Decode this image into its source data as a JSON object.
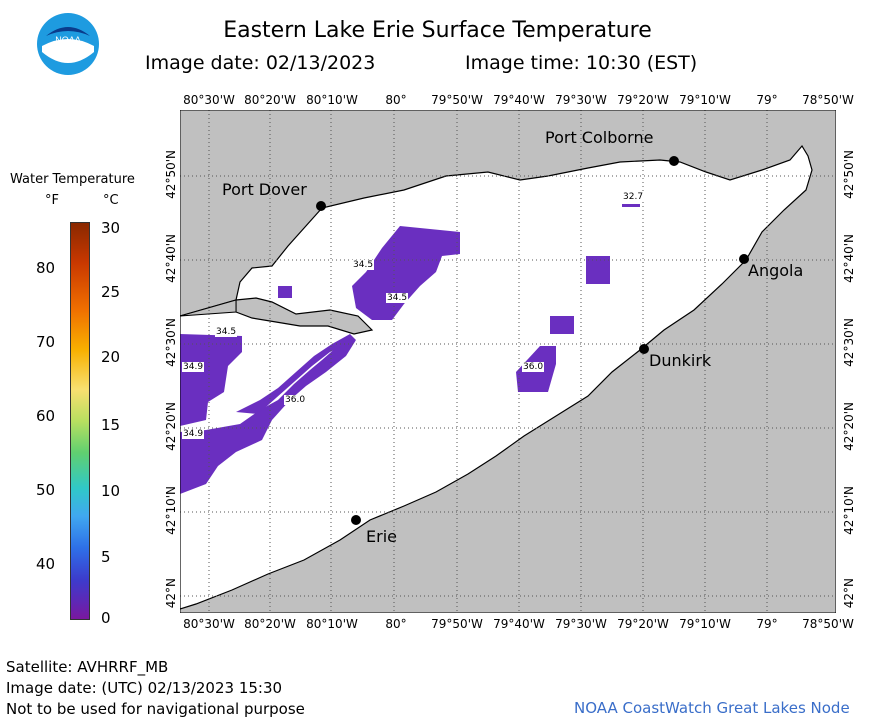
{
  "header": {
    "title": "Eastern Lake Erie Surface Temperature",
    "image_date": "Image date: 02/13/2023",
    "image_time": "Image time: 10:30 (EST)"
  },
  "logo": {
    "text": "NOAA"
  },
  "legend": {
    "title": "Water Temperature",
    "unit_f": "°F",
    "unit_c": "°C",
    "f_labels": [
      "80",
      "70",
      "60",
      "50",
      "40"
    ],
    "c_labels": [
      "30",
      "25",
      "20",
      "15",
      "10",
      "5",
      "0"
    ]
  },
  "axes": {
    "lon_labels": [
      "80°30'W",
      "80°20'W",
      "80°10'W",
      "80°",
      "79°50'W",
      "79°40'W",
      "79°30'W",
      "79°20'W",
      "79°10'W",
      "79°",
      "78°50'W"
    ],
    "lat_labels": [
      "42°50'N",
      "42°40'N",
      "42°30'N",
      "42°20'N",
      "42°10'N",
      "42°N"
    ]
  },
  "places": {
    "port_colborne": "Port Colborne",
    "port_dover": "Port Dover",
    "angola": "Angola",
    "dunkirk": "Dunkirk",
    "erie": "Erie"
  },
  "isotherms": [
    "32.7",
    "34.5",
    "34.5",
    "34.5",
    "34.9",
    "36.0",
    "36.0",
    "34.9"
  ],
  "footer": {
    "satellite": "Satellite: AVHRRF_MB",
    "utc_date": "Image date: (UTC) 02/13/2023  15:30",
    "disclaimer": "Not to be used for navigational purpose",
    "node": "NOAA CoastWatch Great Lakes Node"
  },
  "colors": {
    "land": "#c0c0c0",
    "water": "#ffffff",
    "cold": "#6a2fc0",
    "node_text": "#3a6ec9"
  }
}
